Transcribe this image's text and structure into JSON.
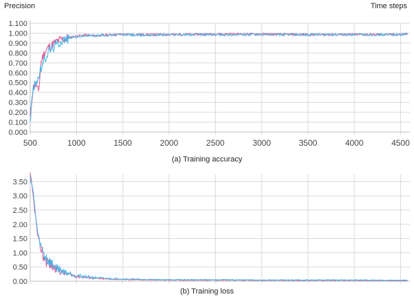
{
  "header": {
    "left": "Precision",
    "right": "Time steps"
  },
  "captions": {
    "a": "(a) Training accuracy",
    "b": "(b) Training loss"
  },
  "colors": {
    "series1": "#e0508f",
    "series2": "#3fb6e8",
    "grid": "#d9d9d9",
    "axis": "#bdbdbd",
    "tick": "#444444"
  },
  "chart_data": [
    {
      "type": "line",
      "title": "(a) Training accuracy",
      "ylabel": "Precision",
      "xlabel": "Time steps",
      "xlim": [
        500,
        4600
      ],
      "ylim": [
        0.0,
        1.1
      ],
      "xticks": [
        500,
        1000,
        1500,
        2000,
        2500,
        3000,
        3500,
        4000,
        4500
      ],
      "yticks": [
        0.0,
        0.1,
        0.2,
        0.3,
        0.4,
        0.5,
        0.6,
        0.7,
        0.8,
        0.9,
        1.0,
        1.1
      ],
      "ytick_labels": [
        "0.000",
        "0.100",
        "0.200",
        "0.300",
        "0.400",
        "0.500",
        "0.600",
        "0.700",
        "0.800",
        "0.900",
        "1.000",
        "1.100"
      ],
      "grid": true,
      "series": [
        {
          "color": "#e0508f",
          "x": [
            500,
            530,
            560,
            590,
            620,
            650,
            700,
            750,
            800,
            850,
            900,
            950,
            1000,
            1100,
            1200,
            1300,
            1400,
            1500,
            1700,
            2000,
            2500,
            3000,
            3500,
            4000,
            4500,
            4580
          ],
          "y": [
            0.14,
            0.45,
            0.48,
            0.4,
            0.72,
            0.8,
            0.86,
            0.89,
            0.92,
            0.94,
            0.95,
            0.96,
            0.97,
            0.98,
            0.975,
            0.98,
            0.985,
            0.985,
            0.985,
            0.985,
            0.99,
            0.99,
            0.985,
            0.985,
            0.985,
            0.995
          ]
        },
        {
          "color": "#3fb6e8",
          "x": [
            500,
            530,
            560,
            590,
            620,
            650,
            700,
            750,
            800,
            850,
            900,
            950,
            1000,
            1100,
            1200,
            1300,
            1400,
            1500,
            1700,
            2000,
            2500,
            3000,
            3500,
            4000,
            4500,
            4580
          ],
          "y": [
            0.12,
            0.42,
            0.5,
            0.55,
            0.65,
            0.72,
            0.82,
            0.86,
            0.9,
            0.93,
            0.94,
            0.96,
            0.96,
            0.975,
            0.975,
            0.98,
            0.98,
            0.985,
            0.98,
            0.985,
            0.985,
            0.985,
            0.985,
            0.985,
            0.985,
            0.99
          ]
        }
      ]
    },
    {
      "type": "line",
      "title": "(b) Training loss",
      "xlim": [
        500,
        4600
      ],
      "ylim": [
        0.0,
        3.75
      ],
      "xticks": [
        500,
        1000,
        1500,
        2000,
        2500,
        3000,
        3500,
        4000,
        4500
      ],
      "xtick_labels_visible": false,
      "yticks": [
        0.0,
        0.5,
        1.0,
        1.5,
        2.0,
        2.5,
        3.0,
        3.5
      ],
      "ytick_labels": [
        "0.00",
        "0.50",
        "1.00",
        "1.50",
        "2.00",
        "2.50",
        "3.00",
        "3.50"
      ],
      "grid": true,
      "series": [
        {
          "color": "#e0508f",
          "x": [
            500,
            520,
            540,
            560,
            580,
            600,
            630,
            660,
            700,
            750,
            800,
            850,
            900,
            1000,
            1100,
            1200,
            1300,
            1500,
            1700,
            2000,
            2500,
            3000,
            3500,
            4000,
            4500,
            4580
          ],
          "y": [
            3.75,
            3.3,
            2.8,
            2.2,
            1.6,
            1.3,
            1.0,
            0.8,
            0.65,
            0.5,
            0.4,
            0.3,
            0.25,
            0.18,
            0.14,
            0.1,
            0.08,
            0.06,
            0.05,
            0.04,
            0.04,
            0.03,
            0.03,
            0.03,
            0.02,
            0.02
          ]
        },
        {
          "color": "#3fb6e8",
          "x": [
            500,
            520,
            540,
            560,
            580,
            600,
            630,
            660,
            700,
            750,
            800,
            850,
            900,
            1000,
            1100,
            1200,
            1300,
            1500,
            1700,
            2000,
            2500,
            3000,
            3500,
            4000,
            4500,
            4580
          ],
          "y": [
            3.7,
            3.4,
            2.9,
            2.3,
            1.7,
            1.4,
            1.1,
            0.9,
            0.7,
            0.55,
            0.45,
            0.35,
            0.3,
            0.2,
            0.16,
            0.12,
            0.1,
            0.08,
            0.06,
            0.05,
            0.05,
            0.04,
            0.04,
            0.04,
            0.03,
            0.03
          ]
        }
      ]
    }
  ]
}
